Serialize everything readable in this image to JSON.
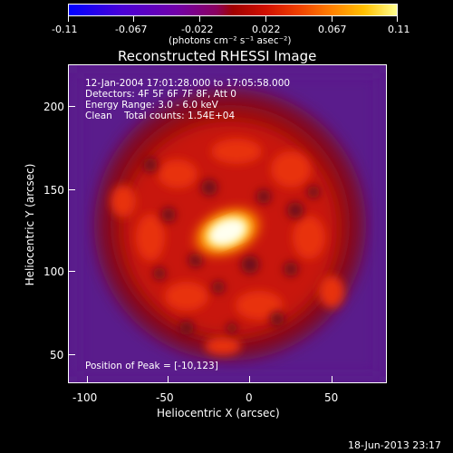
{
  "colorbar": {
    "ticks": [
      "-0.11",
      "-0.067",
      "-0.022",
      "0.022",
      "0.067",
      "0.11"
    ],
    "units": "(photons cm⁻² s⁻¹ asec⁻²)",
    "colors": {
      "min": "#0000ff",
      "mid": "#a00000",
      "max": "#ffff90"
    }
  },
  "plot": {
    "title": "Reconstructed RHESSI Image",
    "info_lines": [
      "12-Jan-2004 17:01:28.000 to 17:05:58.000",
      "Detectors: 4F 5F 6F 7F 8F, Att 0",
      "Energy Range: 3.0 - 6.0 keV",
      "Clean    Total counts: 1.54E+04"
    ],
    "peak_text": "Position of Peak = [-10,123]",
    "xlabel": "Heliocentric X (arcsec)",
    "ylabel": "Heliocentric Y (arcsec)",
    "xticks": [
      "-100",
      "-50",
      "0",
      "50"
    ],
    "yticks": [
      "200",
      "150",
      "100",
      "50"
    ],
    "colormap_icon": "heatmap-image"
  },
  "footer": {
    "timestamp": "18-Jun-2013 23:17"
  }
}
